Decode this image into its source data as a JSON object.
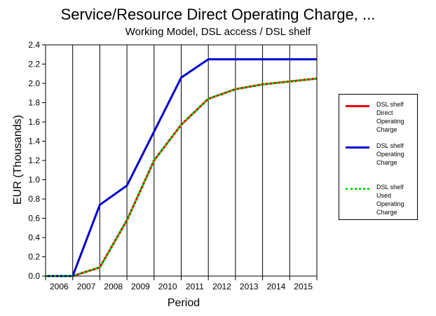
{
  "chart_data": {
    "type": "line",
    "title": "Service/Resource Direct Operating Charge, ...",
    "subtitle": "Working Model, DSL access / DSL shelf",
    "xlabel": "Period",
    "ylabel": "EUR (Thousands)",
    "categories": [
      "2006",
      "2007",
      "2008",
      "2009",
      "2010",
      "2011",
      "2012",
      "2013",
      "2014",
      "2015"
    ],
    "y_ticks": [
      "0.0",
      "0.2",
      "0.4",
      "0.6",
      "0.8",
      "1.0",
      "1.2",
      "1.4",
      "1.6",
      "1.8",
      "2.0",
      "2.2",
      "2.4"
    ],
    "ylim": [
      0,
      2.4
    ],
    "grid": "vertical",
    "legend_position": "right",
    "series": [
      {
        "name": "DSL shelf Direct Operating Charge",
        "color": "#ee0000",
        "style": "solid",
        "x": [
          2005.5,
          2006.5,
          2007.5,
          2008.5,
          2009.5,
          2010.5,
          2011.5,
          2012.5,
          2013.5,
          2014.5,
          2015.5
        ],
        "values": [
          0.0,
          0.0,
          0.09,
          0.58,
          1.2,
          1.57,
          1.84,
          1.94,
          1.99,
          2.02,
          2.05
        ]
      },
      {
        "name": "DSL shelf Operating Charge",
        "color": "#0000cc",
        "style": "solid",
        "x": [
          2005.5,
          2006.5,
          2007.5,
          2008.5,
          2009.5,
          2010.5,
          2011.5,
          2012.5,
          2013.5,
          2014.5,
          2015.5
        ],
        "values": [
          0.0,
          0.0,
          0.74,
          0.94,
          1.5,
          2.06,
          2.25,
          2.25,
          2.25,
          2.25,
          2.25
        ]
      },
      {
        "name": "DSL shelf Used Operating Charge",
        "color": "#00dd00",
        "style": "dotted",
        "x": [
          2005.5,
          2006.5,
          2007.5,
          2008.5,
          2009.5,
          2010.5,
          2011.5,
          2012.5,
          2013.5,
          2014.5,
          2015.5
        ],
        "values": [
          0.0,
          0.0,
          0.09,
          0.58,
          1.2,
          1.57,
          1.84,
          1.94,
          1.99,
          2.02,
          2.05
        ]
      }
    ]
  },
  "legend": {
    "items": [
      {
        "lines": [
          "DSL shelf",
          "Direct",
          "Operating",
          "Charge"
        ],
        "color": "#ee0000",
        "style": "solid"
      },
      {
        "lines": [
          "DSL shelf",
          "Operating",
          "Charge"
        ],
        "color": "#0000cc",
        "style": "solid"
      },
      {
        "lines": [
          "DSL shelf",
          "Used",
          "Operating",
          "Charge"
        ],
        "color": "#00dd00",
        "style": "dotted"
      }
    ]
  }
}
